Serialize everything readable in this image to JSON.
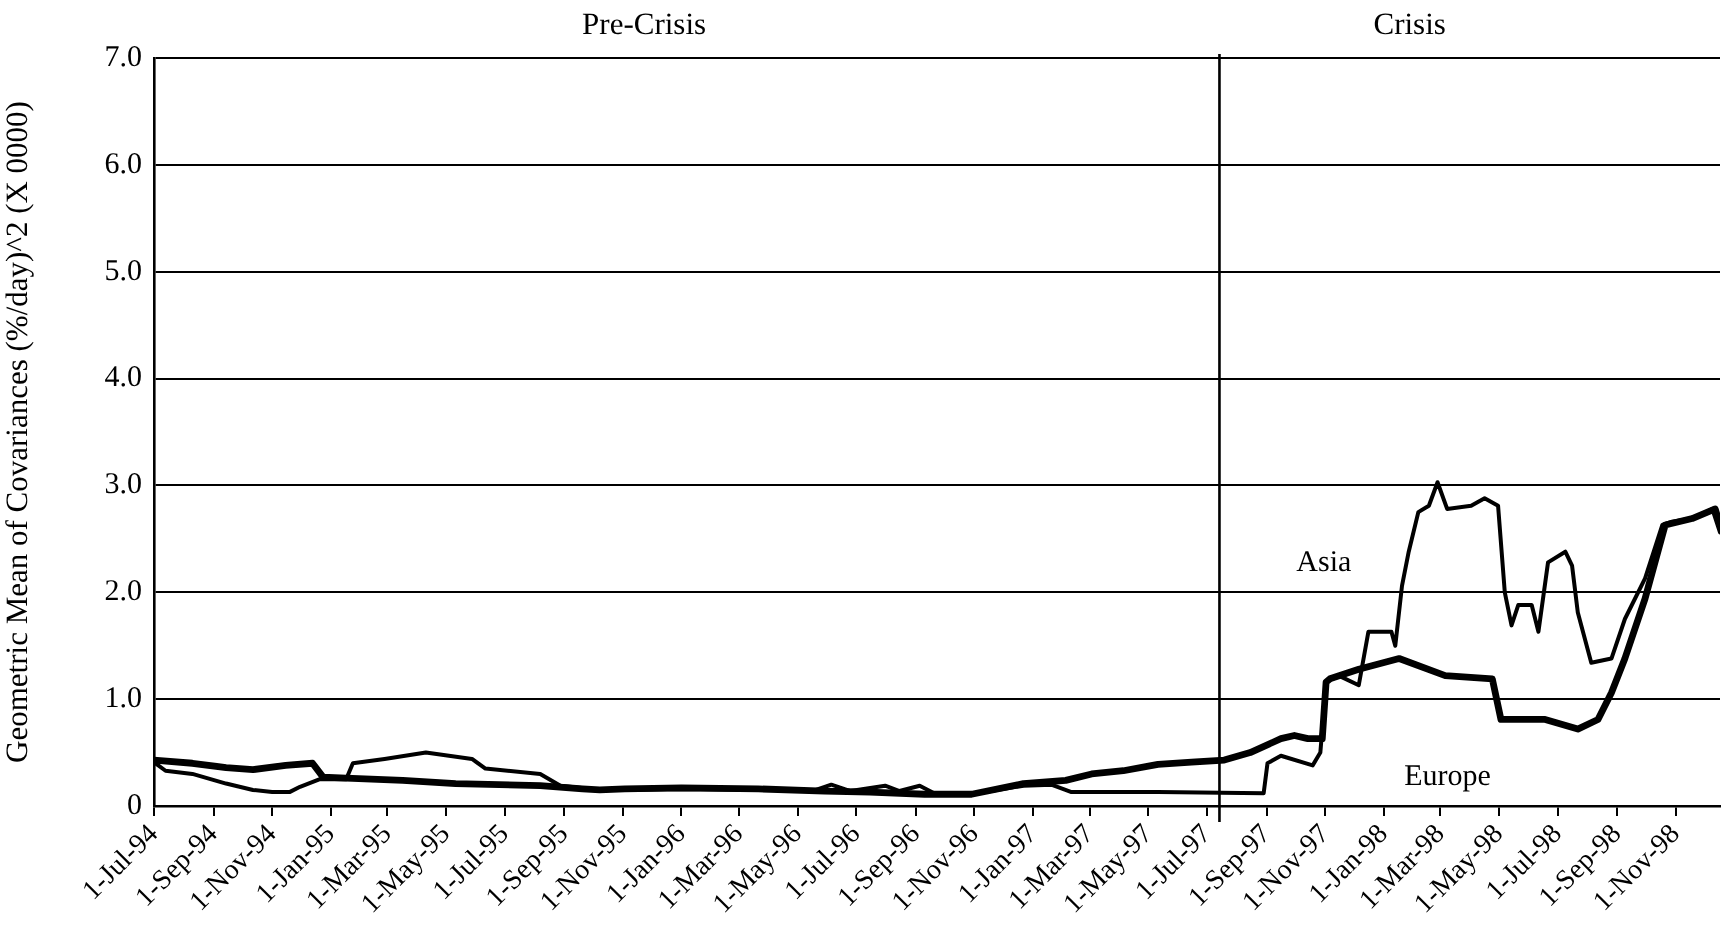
{
  "chart_data": {
    "type": "line",
    "ylabel": "Geometric Mean of Covariances (%/day)^2 (X 0000)",
    "annotations": [
      "Pre-Crisis",
      "Crisis"
    ],
    "xlim": [
      "1994-07-01",
      "1998-12-17"
    ],
    "xticks": [
      {
        "value": "1994-07-01",
        "label": "1-Jul-94"
      },
      {
        "value": "1994-09-01",
        "label": "1-Sep-94"
      },
      {
        "value": "1994-11-01",
        "label": "1-Nov-94"
      },
      {
        "value": "1995-01-01",
        "label": "1-Jan-95"
      },
      {
        "value": "1995-03-01",
        "label": "1-Mar-95"
      },
      {
        "value": "1995-05-01",
        "label": "1-May-95"
      },
      {
        "value": "1995-07-01",
        "label": "1-Jul-95"
      },
      {
        "value": "1995-09-01",
        "label": "1-Sep-95"
      },
      {
        "value": "1995-11-01",
        "label": "1-Nov-95"
      },
      {
        "value": "1996-01-01",
        "label": "1-Jan-96"
      },
      {
        "value": "1996-03-01",
        "label": "1-Mar-96"
      },
      {
        "value": "1996-05-01",
        "label": "1-May-96"
      },
      {
        "value": "1996-07-01",
        "label": "1-Jul-96"
      },
      {
        "value": "1996-09-01",
        "label": "1-Sep-96"
      },
      {
        "value": "1996-11-01",
        "label": "1-Nov-96"
      },
      {
        "value": "1997-01-01",
        "label": "1-Jan-97"
      },
      {
        "value": "1997-03-01",
        "label": "1-Mar-97"
      },
      {
        "value": "1997-05-01",
        "label": "1-May-97"
      },
      {
        "value": "1997-07-01",
        "label": "1-Jul-97"
      },
      {
        "value": "1997-09-01",
        "label": "1-Sep-97"
      },
      {
        "value": "1997-11-01",
        "label": "1-Nov-97"
      },
      {
        "value": "1998-01-01",
        "label": "1-Jan-98"
      },
      {
        "value": "1998-03-01",
        "label": "1-Mar-98"
      },
      {
        "value": "1998-05-01",
        "label": "1-May-98"
      },
      {
        "value": "1998-07-01",
        "label": "1-Jul-98"
      },
      {
        "value": "1998-09-01",
        "label": "1-Sep-98"
      },
      {
        "value": "1998-11-01",
        "label": "1-Nov-98"
      }
    ],
    "ylim": [
      0,
      7
    ],
    "yticks": [
      0,
      {
        "value": 1,
        "label": "1.0"
      },
      {
        "value": 2,
        "label": "2.0"
      },
      {
        "value": 3,
        "label": "3.0"
      },
      {
        "value": 4,
        "label": "4.0"
      },
      {
        "value": 5,
        "label": "5.0"
      },
      {
        "value": 6,
        "label": "6.0"
      },
      {
        "value": 7,
        "label": "7.0"
      }
    ],
    "grid": "y",
    "legend": false,
    "marker": "none",
    "line_style": "solid",
    "ref_lines": [
      {
        "axis": "x",
        "value": "1997-07-14",
        "color": "#000000"
      }
    ],
    "series": [
      {
        "name": "Asia",
        "color": "#000000",
        "x": [
          "1994-07-01",
          "1994-07-13",
          "1994-08-10",
          "1994-09-14",
          "1994-10-12",
          "1994-11-01",
          "1994-11-19",
          "1994-11-30",
          "1994-12-20",
          "1995-01-17",
          "1995-01-24",
          "1995-02-26",
          "1995-04-10",
          "1995-05-28",
          "1995-06-11",
          "1995-08-07",
          "1995-08-28",
          "1995-10-08",
          "1995-11-03",
          "1996-01-01",
          "1996-03-21",
          "1996-05-20",
          "1996-06-05",
          "1996-06-25",
          "1996-07-31",
          "1996-08-15",
          "1996-09-05",
          "1996-09-20",
          "1996-10-29",
          "1996-12-22",
          "1997-01-20",
          "1997-02-10",
          "1997-05-11",
          "1997-08-29",
          "1997-09-02",
          "1997-09-16",
          "1997-10-19",
          "1997-10-27",
          "1997-11-02",
          "1997-11-15",
          "1997-12-06",
          "1997-12-16",
          "1998-01-09",
          "1998-01-13",
          "1998-01-20",
          "1998-01-27",
          "1998-02-06",
          "1998-02-17",
          "1998-02-26",
          "1998-03-08",
          "1998-04-02",
          "1998-04-16",
          "1998-04-30",
          "1998-05-07",
          "1998-05-14",
          "1998-05-21",
          "1998-06-04",
          "1998-06-11",
          "1998-06-21",
          "1998-07-09",
          "1998-07-16",
          "1998-07-22",
          "1998-08-05",
          "1998-08-26",
          "1998-09-09",
          "1998-09-30",
          "1998-10-18",
          "1998-10-28",
          "1998-11-18",
          "1998-12-09",
          "1998-12-17"
        ],
        "values": [
          0.41,
          0.33,
          0.3,
          0.21,
          0.15,
          0.13,
          0.13,
          0.18,
          0.25,
          0.25,
          0.4,
          0.44,
          0.5,
          0.44,
          0.35,
          0.3,
          0.19,
          0.15,
          0.15,
          0.16,
          0.15,
          0.15,
          0.2,
          0.14,
          0.19,
          0.14,
          0.19,
          0.12,
          0.11,
          0.19,
          0.2,
          0.13,
          0.13,
          0.12,
          0.4,
          0.47,
          0.38,
          0.5,
          1.16,
          1.22,
          1.13,
          1.63,
          1.63,
          1.5,
          2.06,
          2.38,
          2.75,
          2.81,
          3.03,
          2.78,
          2.81,
          2.88,
          2.81,
          2.0,
          1.69,
          1.88,
          1.88,
          1.63,
          2.28,
          2.38,
          2.25,
          1.81,
          1.34,
          1.38,
          1.75,
          2.13,
          2.63,
          2.66,
          2.69,
          2.78,
          2.56
        ]
      },
      {
        "name": "Europe",
        "color": "#000000",
        "x": [
          "1994-07-01",
          "1994-08-10",
          "1994-09-14",
          "1994-10-12",
          "1994-11-15",
          "1994-12-13",
          "1994-12-24",
          "1995-01-17",
          "1995-03-17",
          "1995-05-11",
          "1995-08-07",
          "1995-09-20",
          "1995-10-08",
          "1995-11-03",
          "1996-01-01",
          "1996-03-21",
          "1996-05-29",
          "1996-07-15",
          "1996-09-10",
          "1996-10-29",
          "1996-12-22",
          "1997-02-04",
          "1997-03-03",
          "1997-04-05",
          "1997-05-11",
          "1997-06-15",
          "1997-07-19",
          "1997-08-15",
          "1997-09-16",
          "1997-09-30",
          "1997-10-14",
          "1997-10-29",
          "1997-11-02",
          "1997-11-06",
          "1997-12-06",
          "1998-01-17",
          "1998-03-06",
          "1998-04-24",
          "1998-05-03",
          "1998-06-18",
          "1998-07-22",
          "1998-08-12",
          "1998-08-26",
          "1998-09-09",
          "1998-09-30",
          "1998-10-21",
          "1998-11-18",
          "1998-12-12",
          "1998-12-17"
        ],
        "values": [
          0.43,
          0.4,
          0.36,
          0.34,
          0.38,
          0.4,
          0.27,
          0.26,
          0.24,
          0.21,
          0.19,
          0.16,
          0.15,
          0.16,
          0.17,
          0.16,
          0.14,
          0.13,
          0.11,
          0.11,
          0.21,
          0.24,
          0.3,
          0.33,
          0.39,
          0.41,
          0.43,
          0.5,
          0.63,
          0.66,
          0.63,
          0.63,
          1.16,
          1.19,
          1.28,
          1.38,
          1.22,
          1.19,
          0.81,
          0.81,
          0.72,
          0.81,
          1.06,
          1.38,
          1.94,
          2.63,
          2.69,
          2.78,
          2.63
        ]
      }
    ]
  }
}
